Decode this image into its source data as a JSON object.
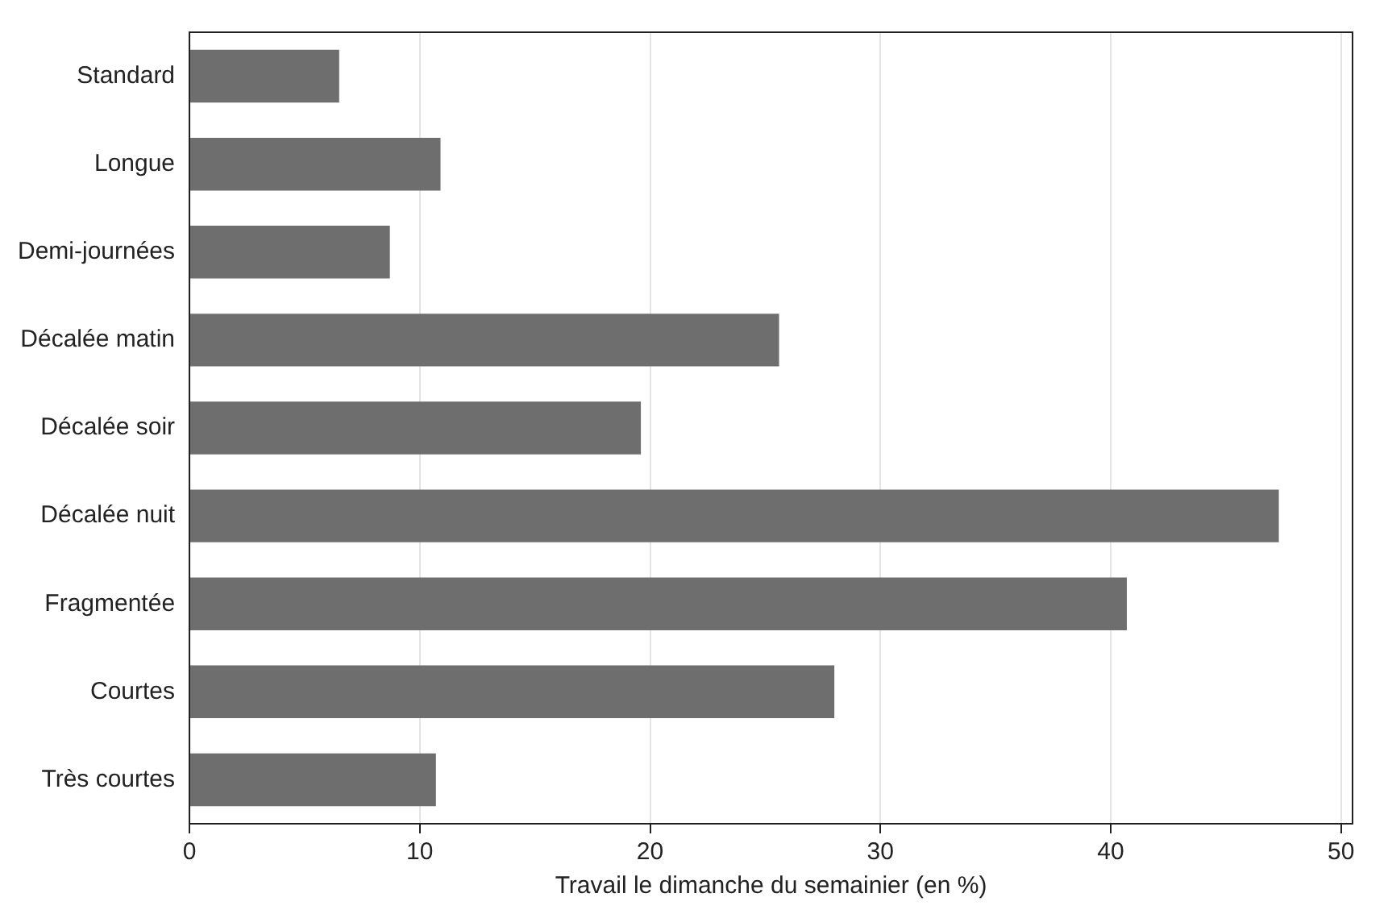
{
  "chart_data": {
    "type": "bar",
    "orientation": "horizontal",
    "xlabel": "Travail le dimanche du semainier (en %)",
    "categories": [
      "Standard",
      "Longue",
      "Demi-journées",
      "Décalée matin",
      "Décalée soir",
      "Décalée nuit",
      "Fragmentée",
      "Courtes",
      "Très courtes"
    ],
    "values": [
      6.5,
      10.9,
      8.7,
      25.6,
      19.6,
      47.3,
      40.7,
      28.0,
      10.7
    ],
    "color": "#6e6e6e",
    "xlim": [
      0,
      50.5
    ],
    "xticks": [
      0,
      10,
      20,
      30,
      40,
      50
    ],
    "grid": "x",
    "legend": false
  }
}
